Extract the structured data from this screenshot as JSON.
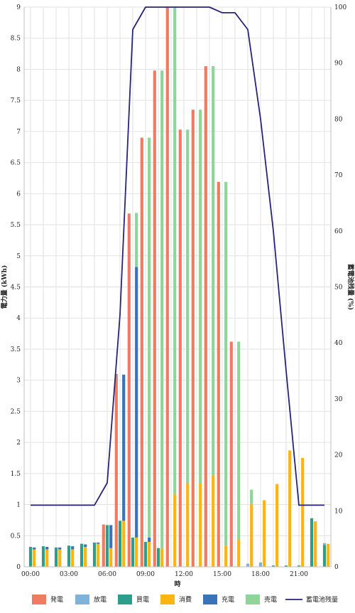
{
  "chart_data": {
    "type": "bar",
    "hours": [
      "00",
      "01",
      "02",
      "03",
      "04",
      "05",
      "06",
      "07",
      "08",
      "09",
      "10",
      "11",
      "12",
      "13",
      "14",
      "15",
      "16",
      "17",
      "18",
      "19",
      "20",
      "21",
      "22",
      "23"
    ],
    "x_tick_labels": [
      "00:00",
      "03:00",
      "06:00",
      "09:00",
      "12:00",
      "15:00",
      "18:00",
      "21:00"
    ],
    "xlabel": "時",
    "ylabel_left": "電力量 (kWh)",
    "ylabel_right": "蓄電池残量 (%)",
    "ylim_left": [
      0,
      9
    ],
    "ylim_right": [
      0,
      100
    ],
    "y_ticks_left": [
      "0",
      "0.5",
      "1",
      "1.5",
      "2",
      "2.5",
      "3",
      "3.5",
      "4",
      "4.5",
      "5",
      "5.5",
      "6",
      "6.5",
      "7",
      "7.5",
      "8",
      "8.5",
      "9"
    ],
    "y_ticks_right": [
      "0",
      "10",
      "20",
      "30",
      "40",
      "50",
      "60",
      "70",
      "80",
      "90",
      "100"
    ],
    "grid": true,
    "legend_position": "bottom",
    "series_colors": {
      "generation": "#f07b63",
      "discharge": "#7eb2d6",
      "purchase": "#2e9e8c",
      "consumption": "#fbb511",
      "charge": "#3b73b9",
      "sale": "#8fd59a",
      "battery": "#25257a"
    },
    "legend": [
      {
        "key": "generation",
        "label": "発電"
      },
      {
        "key": "discharge",
        "label": "放電"
      },
      {
        "key": "purchase",
        "label": "買電"
      },
      {
        "key": "consumption",
        "label": "消費"
      },
      {
        "key": "charge",
        "label": "充電"
      },
      {
        "key": "sale",
        "label": "売電"
      },
      {
        "key": "battery",
        "label": "蓄電池残量"
      }
    ],
    "generation_stack": {
      "generation": [
        0,
        0,
        0,
        0,
        0,
        0,
        0.68,
        3.1,
        5.68,
        6.9,
        7.98,
        9.0,
        7.03,
        7.35,
        8.05,
        6.19,
        3.62,
        0,
        0,
        0,
        0,
        0,
        0,
        0
      ]
    },
    "supply_stack": {
      "discharge": [
        0,
        0,
        0,
        0,
        0,
        0,
        0,
        0,
        0,
        0,
        0,
        0,
        0,
        0,
        0,
        0,
        0,
        0.05,
        0.07,
        0,
        0,
        0,
        0,
        0.03
      ],
      "purchase": [
        0.32,
        0.33,
        0.31,
        0.34,
        0.37,
        0.39,
        0.67,
        0.74,
        0.47,
        0.4,
        0.3,
        0,
        0,
        0,
        0,
        0,
        0,
        0,
        0,
        0.02,
        0.02,
        0.02,
        0.78,
        0.35
      ]
    },
    "consumption_stack": {
      "consumption": [
        0.28,
        0.28,
        0.28,
        0.28,
        0.32,
        0.37,
        0.3,
        0.74,
        0.47,
        0.4,
        0.3,
        1.17,
        1.35,
        1.35,
        1.47,
        0.34,
        0.44,
        1.01,
        1.07,
        1.33,
        1.87,
        1.75,
        0.73,
        0.37
      ],
      "charge": [
        0.03,
        0.04,
        0.03,
        0.05,
        0.04,
        0.02,
        0.37,
        2.35,
        4.35,
        0.07,
        0,
        0,
        0,
        0,
        0,
        0,
        0,
        0,
        0,
        0,
        0,
        0,
        0,
        0
      ],
      "sale": [
        0,
        0,
        0,
        0,
        0,
        0,
        0,
        0,
        0.87,
        6.43,
        7.68,
        7.83,
        5.68,
        6.0,
        6.58,
        5.85,
        3.18,
        0.23,
        0,
        0,
        0,
        0,
        0,
        0
      ]
    },
    "battery_level_pct": [
      11,
      11,
      11,
      11,
      11,
      11,
      15,
      45,
      96,
      100,
      100,
      100,
      100,
      100,
      100,
      99,
      99,
      96,
      80,
      60,
      35,
      11,
      11,
      11
    ]
  }
}
